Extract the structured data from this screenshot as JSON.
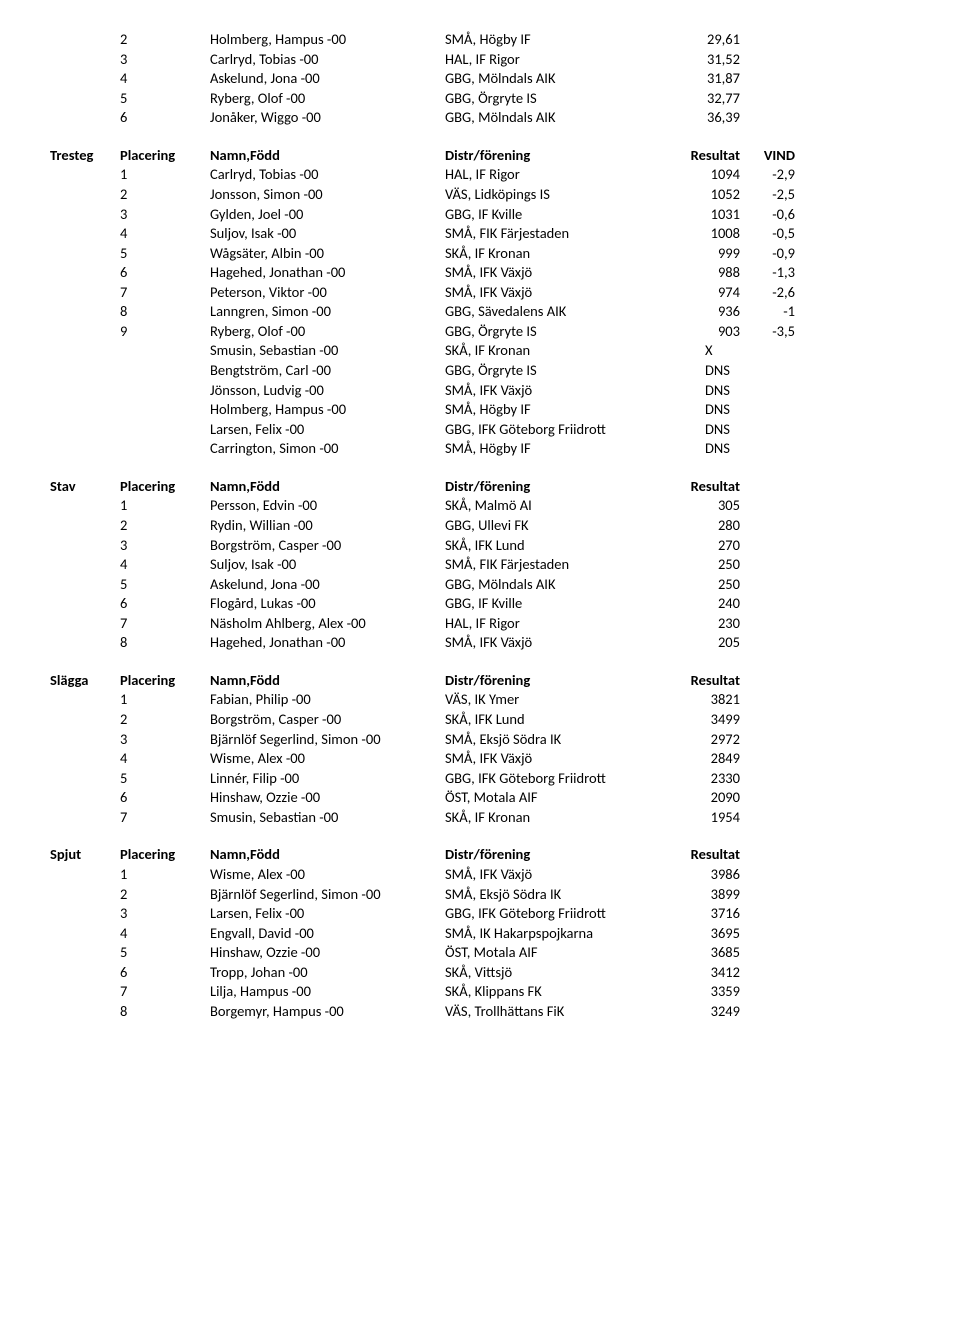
{
  "top_rows": [
    {
      "p": "2",
      "n": "Holmberg, Hampus -00",
      "c": "SMÅ, Högby IF",
      "r": "29,61"
    },
    {
      "p": "3",
      "n": "Carlryd, Tobias -00",
      "c": "HAL, IF Rigor",
      "r": "31,52"
    },
    {
      "p": "4",
      "n": "Askelund, Jona -00",
      "c": "GBG, Mölndals AIK",
      "r": "31,87"
    },
    {
      "p": "5",
      "n": "Ryberg, Olof -00",
      "c": "GBG, Örgryte IS",
      "r": "32,77"
    },
    {
      "p": "6",
      "n": "Jonåker, Wiggo -00",
      "c": "GBG, Mölndals AIK",
      "r": "36,39"
    }
  ],
  "sections": [
    {
      "event": "Tresteg",
      "header": {
        "plac": "Placering",
        "name": "Namn,Född",
        "club": "Distr/förening",
        "res": "Resultat",
        "wind": "VIND"
      },
      "rows": [
        {
          "p": "1",
          "n": "Carlryd, Tobias -00",
          "c": "HAL, IF Rigor",
          "r": "1094",
          "w": "-2,9"
        },
        {
          "p": "2",
          "n": "Jonsson, Simon -00",
          "c": "VÄS, Lidköpings IS",
          "r": "1052",
          "w": "-2,5"
        },
        {
          "p": "3",
          "n": "Gylden, Joel -00",
          "c": "GBG, IF Kville",
          "r": "1031",
          "w": "-0,6"
        },
        {
          "p": "4",
          "n": "Suljov, Isak -00",
          "c": "SMÅ, FIK Färjestaden",
          "r": "1008",
          "w": "-0,5"
        },
        {
          "p": "5",
          "n": "Wågsäter, Albin -00",
          "c": "SKÅ, IF Kronan",
          "r": "999",
          "w": "-0,9"
        },
        {
          "p": "6",
          "n": "Hagehed, Jonathan -00",
          "c": "SMÅ, IFK Växjö",
          "r": "988",
          "w": "-1,3"
        },
        {
          "p": "7",
          "n": "Peterson, Viktor -00",
          "c": "SMÅ, IFK Växjö",
          "r": "974",
          "w": "-2,6"
        },
        {
          "p": "8",
          "n": "Lanngren, Simon -00",
          "c": "GBG, Sävedalens AIK",
          "r": "936",
          "w": "-1"
        },
        {
          "p": "9",
          "n": "Ryberg, Olof -00",
          "c": "GBG, Örgryte IS",
          "r": "903",
          "w": "-3,5"
        },
        {
          "p": "",
          "n": "Smusin, Sebastian -00",
          "c": "SKÅ, IF Kronan",
          "r": "X",
          "w": "",
          "left": true
        },
        {
          "p": "",
          "n": "Bengtström, Carl -00",
          "c": "GBG, Örgryte IS",
          "r": "DNS",
          "w": "",
          "left": true
        },
        {
          "p": "",
          "n": "Jönsson, Ludvig -00",
          "c": "SMÅ, IFK Växjö",
          "r": "DNS",
          "w": "",
          "left": true
        },
        {
          "p": "",
          "n": "Holmberg, Hampus -00",
          "c": "SMÅ, Högby IF",
          "r": "DNS",
          "w": "",
          "left": true
        },
        {
          "p": "",
          "n": "Larsen, Felix -00",
          "c": "GBG, IFK Göteborg Friidrott",
          "r": "DNS",
          "w": "",
          "left": true
        },
        {
          "p": "",
          "n": "Carrington, Simon -00",
          "c": "SMÅ, Högby IF",
          "r": "DNS",
          "w": "",
          "left": true
        }
      ]
    },
    {
      "event": "Stav",
      "header": {
        "plac": "Placering",
        "name": "Namn,Född",
        "club": "Distr/förening",
        "res": "Resultat"
      },
      "rows": [
        {
          "p": "1",
          "n": "Persson, Edvin -00",
          "c": "SKÅ, Malmö AI",
          "r": "305"
        },
        {
          "p": "2",
          "n": "Rydin, Willian -00",
          "c": "GBG, Ullevi FK",
          "r": "280"
        },
        {
          "p": "3",
          "n": "Borgström, Casper -00",
          "c": "SKÅ, IFK Lund",
          "r": "270"
        },
        {
          "p": "4",
          "n": "Suljov, Isak -00",
          "c": "SMÅ, FIK Färjestaden",
          "r": "250"
        },
        {
          "p": "5",
          "n": "Askelund, Jona -00",
          "c": "GBG, Mölndals AIK",
          "r": "250"
        },
        {
          "p": "6",
          "n": "Flogård, Lukas -00",
          "c": "GBG, IF Kville",
          "r": "240"
        },
        {
          "p": "7",
          "n": "Näsholm Ahlberg, Alex -00",
          "c": "HAL, IF Rigor",
          "r": "230"
        },
        {
          "p": "8",
          "n": "Hagehed, Jonathan -00",
          "c": "SMÅ, IFK Växjö",
          "r": "205"
        }
      ]
    },
    {
      "event": "Slägga",
      "header": {
        "plac": "Placering",
        "name": "Namn,Född",
        "club": "Distr/förening",
        "res": "Resultat"
      },
      "rows": [
        {
          "p": "1",
          "n": "Fabian, Philip -00",
          "c": "VÄS, IK Ymer",
          "r": "3821"
        },
        {
          "p": "2",
          "n": "Borgström, Casper -00",
          "c": "SKÅ, IFK Lund",
          "r": "3499"
        },
        {
          "p": "3",
          "n": "Bjärnlöf Segerlind, Simon -00",
          "c": "SMÅ, Eksjö Södra IK",
          "r": "2972"
        },
        {
          "p": "4",
          "n": "Wisme, Alex -00",
          "c": "SMÅ, IFK Växjö",
          "r": "2849"
        },
        {
          "p": "5",
          "n": "Linnér, Filip -00",
          "c": "GBG, IFK Göteborg Friidrott",
          "r": "2330"
        },
        {
          "p": "6",
          "n": "Hinshaw, Ozzie -00",
          "c": "ÖST, Motala AIF",
          "r": "2090"
        },
        {
          "p": "7",
          "n": "Smusin, Sebastian -00",
          "c": "SKÅ, IF Kronan",
          "r": "1954"
        }
      ]
    },
    {
      "event": "Spjut",
      "header": {
        "plac": "Placering",
        "name": "Namn,Född",
        "club": "Distr/förening",
        "res": "Resultat"
      },
      "rows": [
        {
          "p": "1",
          "n": "Wisme, Alex -00",
          "c": "SMÅ, IFK Växjö",
          "r": "3986"
        },
        {
          "p": "2",
          "n": "Bjärnlöf Segerlind, Simon -00",
          "c": "SMÅ, Eksjö Södra IK",
          "r": "3899"
        },
        {
          "p": "3",
          "n": "Larsen, Felix -00",
          "c": "GBG, IFK Göteborg Friidrott",
          "r": "3716"
        },
        {
          "p": "4",
          "n": "Engvall, David -00",
          "c": "SMÅ, IK Hakarpspojkarna",
          "r": "3695"
        },
        {
          "p": "5",
          "n": "Hinshaw, Ozzie -00",
          "c": "ÖST, Motala AIF",
          "r": "3685"
        },
        {
          "p": "6",
          "n": "Tropp, Johan -00",
          "c": "SKÅ, Vittsjö",
          "r": "3412"
        },
        {
          "p": "7",
          "n": "Lilja, Hampus -00",
          "c": "SKÅ, Klippans FK",
          "r": "3359"
        },
        {
          "p": "8",
          "n": "Borgemyr, Hampus -00",
          "c": "VÄS, Trollhättans FiK",
          "r": "3249"
        }
      ]
    }
  ]
}
